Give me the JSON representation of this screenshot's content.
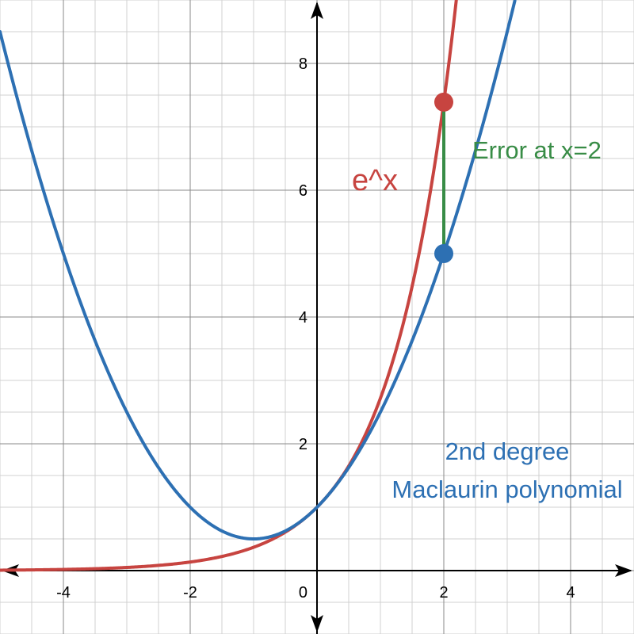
{
  "chart_data": {
    "type": "line",
    "xlim": [
      -5,
      5
    ],
    "ylim": [
      -1,
      9
    ],
    "grid": true,
    "minor_grid_step": 0.5,
    "major_grid_step": 2,
    "x_ticks": [
      -4,
      -2,
      2,
      4
    ],
    "y_ticks": [
      2,
      4,
      6,
      8
    ],
    "origin_label": "0",
    "series": [
      {
        "name": "e^x",
        "formula": "exp(x)",
        "color": "#c74440",
        "x": [
          -5,
          -4,
          -3,
          -2,
          -1,
          0,
          1,
          1.5,
          2,
          2.25
        ],
        "y": [
          0.0067,
          0.0183,
          0.0498,
          0.1353,
          0.3679,
          1,
          2.7183,
          4.4817,
          7.389,
          9.4877
        ]
      },
      {
        "name": "2nd degree Maclaurin polynomial",
        "formula": "1 + x + x^2/2",
        "color": "#2d70b3",
        "x": [
          -5,
          -4,
          -3,
          -2,
          -1,
          0,
          1,
          2,
          3,
          3.12
        ],
        "y": [
          8.5,
          5,
          2.5,
          1,
          0.5,
          1,
          2.5,
          5,
          8.5,
          8.99
        ]
      }
    ],
    "points": [
      {
        "x": 2,
        "y": 7.389,
        "color": "#c74440"
      },
      {
        "x": 2,
        "y": 5,
        "color": "#2d70b3"
      }
    ],
    "error_segment": {
      "x": 2,
      "y1": 5,
      "y2": 7.389,
      "color": "#388c46"
    },
    "annotations": [
      {
        "id": "ex",
        "text": "e^x",
        "x": 0.55,
        "y": 6.0,
        "color": "#c74440"
      },
      {
        "id": "err",
        "text": "Error at x=2",
        "x": 2.45,
        "y": 6.5,
        "color": "#388c46"
      },
      {
        "id": "poly1",
        "text": "2nd degree",
        "x": 3.0,
        "y": 1.75,
        "color": "#2d70b3"
      },
      {
        "id": "poly2",
        "text": "Maclaurin polynomial",
        "x": 3.0,
        "y": 1.15,
        "color": "#2d70b3"
      }
    ]
  }
}
